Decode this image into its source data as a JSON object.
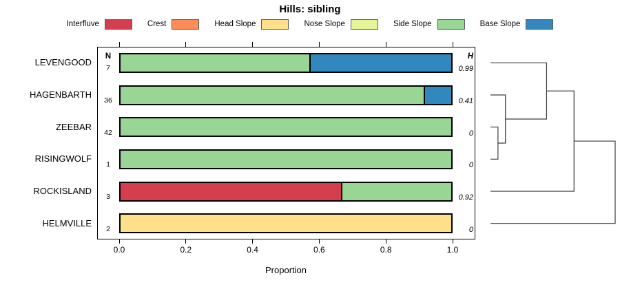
{
  "chart_data": {
    "type": "bar",
    "variant": "horizontal-stacked-proportion",
    "title": "Hills: sibling",
    "xlabel": "Proportion",
    "xlim": [
      0,
      1
    ],
    "xticks": [
      0.0,
      0.2,
      0.4,
      0.6,
      0.8,
      1.0
    ],
    "xtick_labels": [
      "0.0",
      "0.2",
      "0.4",
      "0.6",
      "0.8",
      "1.0"
    ],
    "grid": false,
    "legend_position": "top",
    "categories": [
      "LEVENGOOD",
      "HAGENBARTH",
      "ZEEBAR",
      "RISINGWOLF",
      "ROCKISLAND",
      "HELMVILLE"
    ],
    "n_header": "N",
    "h_header": "H",
    "n_values": [
      "7",
      "36",
      "42",
      "1",
      "3",
      "2"
    ],
    "h_values": [
      "0.99",
      "0.41",
      "0",
      "0",
      "0.92",
      "0"
    ],
    "series": [
      {
        "name": "Interfluve",
        "color": "#d53e4f",
        "values": [
          0,
          0,
          0,
          0,
          0.667,
          0
        ]
      },
      {
        "name": "Crest",
        "color": "#fc8d59",
        "values": [
          0,
          0,
          0,
          0,
          0,
          0
        ]
      },
      {
        "name": "Head Slope",
        "color": "#fee08b",
        "values": [
          0,
          0,
          0,
          0,
          0,
          1.0
        ]
      },
      {
        "name": "Nose Slope",
        "color": "#e6f598",
        "values": [
          0,
          0,
          0,
          0,
          0,
          0
        ]
      },
      {
        "name": "Side Slope",
        "color": "#99d594",
        "values": [
          0.571,
          0.917,
          1.0,
          1.0,
          0.333,
          0
        ]
      },
      {
        "name": "Base Slope",
        "color": "#3288bd",
        "values": [
          0.429,
          0.083,
          0,
          0,
          0,
          0
        ]
      }
    ],
    "dendrogram": {
      "orientation": "right",
      "leaf_order": [
        "LEVENGOOD",
        "HAGENBARTH",
        "ZEEBAR",
        "RISINGWOLF",
        "ROCKISLAND",
        "HELMVILLE"
      ],
      "merges": [
        {
          "join": [
            2,
            3
          ],
          "height_frac": 0.06
        },
        {
          "join": [
            1,
            "m0"
          ],
          "height_frac": 0.12
        },
        {
          "join": [
            0,
            "m1"
          ],
          "height_frac": 0.45
        },
        {
          "join": [
            "m2",
            4
          ],
          "height_frac": 0.67
        },
        {
          "join": [
            "m3",
            5
          ],
          "height_frac": 1.0
        }
      ],
      "line_color": "#3a3a3a"
    }
  }
}
